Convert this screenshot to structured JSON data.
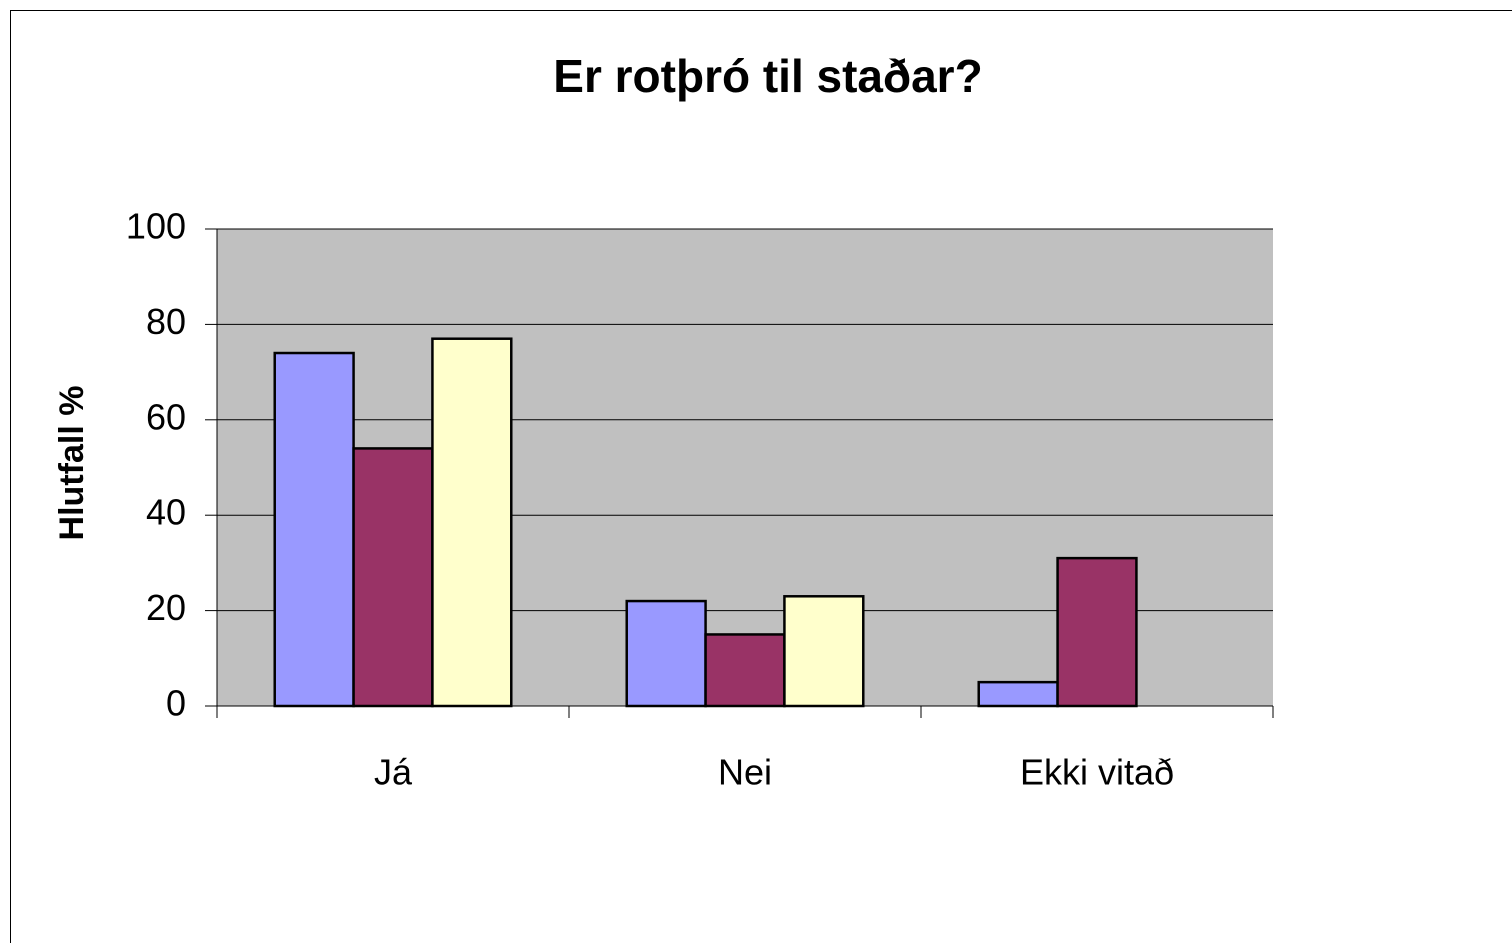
{
  "chart_data": {
    "type": "bar",
    "title": "Er rotþró til staðar?",
    "y_label": "Hlutfall %",
    "categories": [
      "Já",
      "Nei",
      "Ekki vitað"
    ],
    "series": [
      {
        "color": "#9999ff",
        "values": [
          74,
          22,
          5
        ]
      },
      {
        "color": "#993366",
        "values": [
          54,
          15,
          31
        ]
      },
      {
        "color": "#ffffcc",
        "values": [
          77,
          23,
          null
        ]
      }
    ],
    "ylim": [
      0,
      100
    ],
    "yticks": [
      0,
      20,
      40,
      60,
      80,
      100
    ],
    "grid": true,
    "plot_background": "#c0c0c0"
  }
}
